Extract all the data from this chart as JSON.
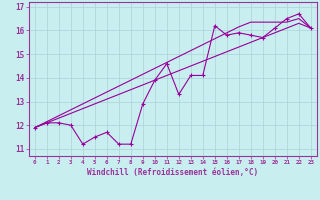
{
  "x": [
    0,
    1,
    2,
    3,
    4,
    5,
    6,
    7,
    8,
    9,
    10,
    11,
    12,
    13,
    14,
    15,
    16,
    17,
    18,
    19,
    20,
    21,
    22,
    23
  ],
  "y_data": [
    11.9,
    12.1,
    12.1,
    12.0,
    11.2,
    11.5,
    11.7,
    11.2,
    11.2,
    12.9,
    13.9,
    14.6,
    13.3,
    14.1,
    14.1,
    16.2,
    15.8,
    15.9,
    15.8,
    15.7,
    16.1,
    16.5,
    16.7,
    16.1
  ],
  "y_reg1": [
    11.9,
    12.15,
    12.4,
    12.65,
    12.9,
    13.15,
    13.4,
    13.65,
    13.9,
    14.15,
    14.4,
    14.65,
    14.9,
    15.15,
    15.4,
    15.65,
    15.9,
    16.15,
    16.35,
    16.35,
    16.35,
    16.35,
    16.5,
    16.1
  ],
  "y_reg2": [
    11.9,
    12.1,
    12.3,
    12.5,
    12.7,
    12.9,
    13.1,
    13.3,
    13.5,
    13.7,
    13.9,
    14.1,
    14.3,
    14.5,
    14.7,
    14.9,
    15.1,
    15.3,
    15.5,
    15.7,
    15.9,
    16.1,
    16.3,
    16.1
  ],
  "line_color": "#990099",
  "bg_color": "#c8eef0",
  "grid_color": "#b0d8dc",
  "xlabel": "Windchill (Refroidissement éolien,°C)",
  "ylim": [
    10.7,
    17.2
  ],
  "xlim": [
    -0.5,
    23.5
  ],
  "yticks": [
    11,
    12,
    13,
    14,
    15,
    16,
    17
  ],
  "xticks": [
    0,
    1,
    2,
    3,
    4,
    5,
    6,
    7,
    8,
    9,
    10,
    11,
    12,
    13,
    14,
    15,
    16,
    17,
    18,
    19,
    20,
    21,
    22,
    23
  ],
  "spine_color": "#993399",
  "tick_color": "#993399",
  "label_color": "#993399"
}
